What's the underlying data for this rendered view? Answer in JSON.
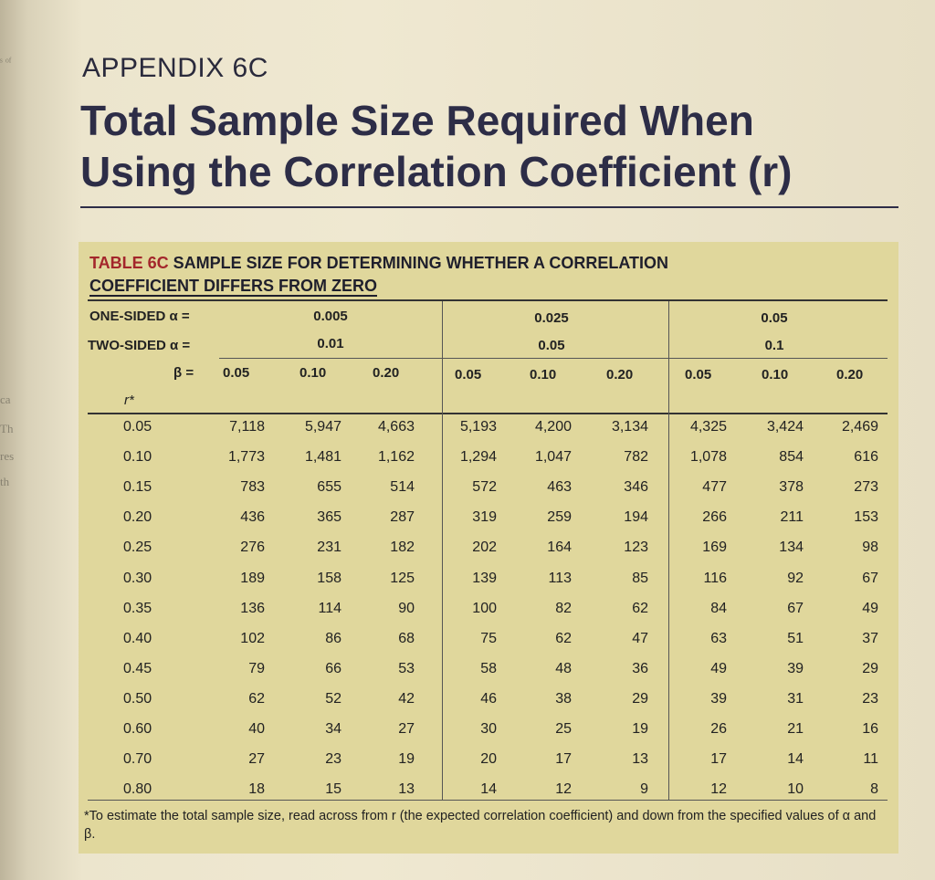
{
  "appendix_label": "APPENDIX 6C",
  "title_line1": "Total Sample Size Required When",
  "title_line2": "Using the Correlation Coefficient (r)",
  "table": {
    "caption_number": "TABLE 6C",
    "caption_text_a": " SAMPLE SIZE FOR DETERMINING WHETHER A CORRELATION",
    "caption_text_b": "COEFFICIENT DIFFERS FROM ZERO",
    "one_sided_label": "ONE-SIDED α =",
    "two_sided_label": "TWO-SIDED α =",
    "beta_label": "β =",
    "r_label": "r*",
    "one_sided_values": [
      "0.005",
      "0.025",
      "0.05"
    ],
    "two_sided_values": [
      "0.01",
      "0.05",
      "0.1"
    ],
    "beta_values": [
      "0.05",
      "0.10",
      "0.20",
      "0.05",
      "0.10",
      "0.20",
      "0.05",
      "0.10",
      "0.20"
    ],
    "rows": [
      {
        "r": "0.05",
        "values": [
          "7,118",
          "5,947",
          "4,663",
          "5,193",
          "4,200",
          "3,134",
          "4,325",
          "3,424",
          "2,469"
        ]
      },
      {
        "r": "0.10",
        "values": [
          "1,773",
          "1,481",
          "1,162",
          "1,294",
          "1,047",
          "782",
          "1,078",
          "854",
          "616"
        ]
      },
      {
        "r": "0.15",
        "values": [
          "783",
          "655",
          "514",
          "572",
          "463",
          "346",
          "477",
          "378",
          "273"
        ]
      },
      {
        "r": "0.20",
        "values": [
          "436",
          "365",
          "287",
          "319",
          "259",
          "194",
          "266",
          "211",
          "153"
        ]
      },
      {
        "r": "0.25",
        "values": [
          "276",
          "231",
          "182",
          "202",
          "164",
          "123",
          "169",
          "134",
          "98"
        ]
      },
      {
        "r": "0.30",
        "values": [
          "189",
          "158",
          "125",
          "139",
          "113",
          "85",
          "116",
          "92",
          "67"
        ]
      },
      {
        "r": "0.35",
        "values": [
          "136",
          "114",
          "90",
          "100",
          "82",
          "62",
          "84",
          "67",
          "49"
        ]
      },
      {
        "r": "0.40",
        "values": [
          "102",
          "86",
          "68",
          "75",
          "62",
          "47",
          "63",
          "51",
          "37"
        ]
      },
      {
        "r": "0.45",
        "values": [
          "79",
          "66",
          "53",
          "58",
          "48",
          "36",
          "49",
          "39",
          "29"
        ]
      },
      {
        "r": "0.50",
        "values": [
          "62",
          "52",
          "42",
          "46",
          "38",
          "29",
          "39",
          "31",
          "23"
        ]
      },
      {
        "r": "0.60",
        "values": [
          "40",
          "34",
          "27",
          "30",
          "25",
          "19",
          "26",
          "21",
          "16"
        ]
      },
      {
        "r": "0.70",
        "values": [
          "27",
          "23",
          "19",
          "20",
          "17",
          "13",
          "17",
          "14",
          "11"
        ]
      },
      {
        "r": "0.80",
        "values": [
          "18",
          "15",
          "13",
          "14",
          "12",
          "9",
          "12",
          "10",
          "8"
        ]
      }
    ],
    "footnote": "*To estimate the total sample size, read across from r (the expected correlation coefficient) and down from the specified values of α and β."
  },
  "colors": {
    "panel": "#e0d79c",
    "caption_number": "#a3262b",
    "title": "#2d2d47"
  }
}
